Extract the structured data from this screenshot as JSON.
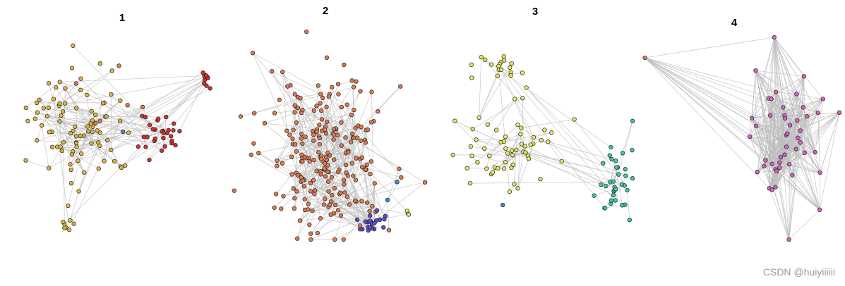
{
  "panels": [
    {
      "label": "1",
      "clusters": [
        {
          "color": "#e0b43c",
          "count": 95
        },
        {
          "color": "#d42f2f",
          "count": 40
        },
        {
          "color": "#e07a4f",
          "count": 6
        },
        {
          "color": "#4a86c8",
          "count": 1
        }
      ]
    },
    {
      "label": "2",
      "clusters": [
        {
          "color": "#e07a4f",
          "count": 230
        },
        {
          "color": "#5a4fcf",
          "count": 22
        },
        {
          "color": "#e6e65a",
          "count": 3
        },
        {
          "color": "#4a86c8",
          "count": 2
        }
      ]
    },
    {
      "label": "3",
      "clusters": [
        {
          "color": "#e6e65a",
          "count": 75
        },
        {
          "color": "#3cc9a6",
          "count": 35
        },
        {
          "color": "#4a86c8",
          "count": 1
        }
      ]
    },
    {
      "label": "4",
      "clusters": [
        {
          "color": "#d661c2",
          "count": 48
        },
        {
          "color": "#e07a4f",
          "count": 1
        }
      ]
    }
  ],
  "watermark": "CSDN @huiyiiiiii"
}
